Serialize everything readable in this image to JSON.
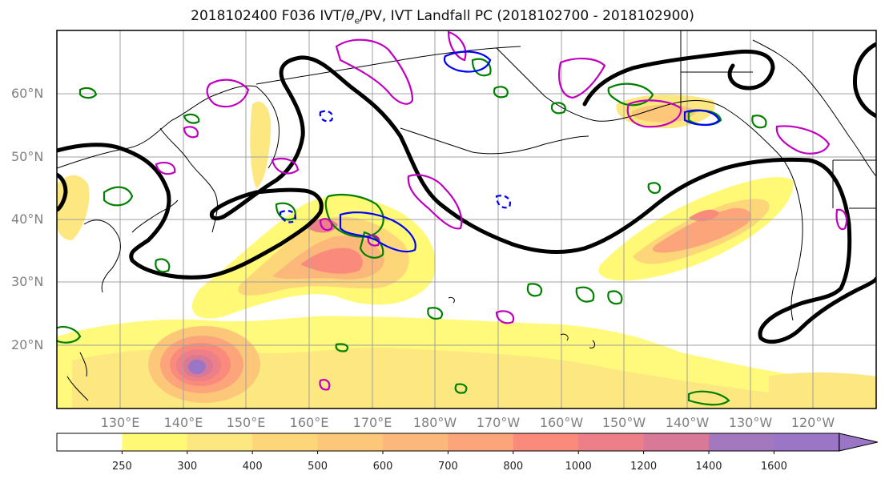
{
  "title": {
    "prefix": "2018102400 F036 IVT/",
    "theta_symbol": "θ",
    "theta_sub": "e",
    "suffix": "/PV, IVT Landfall PC (2018102700 - 2018102900)"
  },
  "map": {
    "lat_labels": [
      "60°N",
      "50°N",
      "40°N",
      "30°N",
      "20°N"
    ],
    "lon_labels": [
      "130°E",
      "140°E",
      "150°E",
      "160°E",
      "170°E",
      "180°W",
      "170°W",
      "160°W",
      "150°W",
      "140°W",
      "130°W",
      "120°W"
    ],
    "lat_range": [
      10,
      70
    ],
    "lon_range": [
      120,
      250
    ],
    "grid": true,
    "contour_colors": {
      "pv_line": "#000000",
      "theta_e": "#008000",
      "magenta": "#c000c0",
      "blue": "#0000ff"
    }
  },
  "colorbar": {
    "levels": [
      "250",
      "300",
      "400",
      "500",
      "600",
      "700",
      "800",
      "1000",
      "1200",
      "1400",
      "1600"
    ],
    "colors": [
      "#ffffff",
      "#fff975",
      "#fde780",
      "#fdd67a",
      "#fcc778",
      "#fcb87a",
      "#fca57a",
      "#f98a7c",
      "#ed7f88",
      "#d87997",
      "#a478be",
      "#9b75c6"
    ]
  }
}
